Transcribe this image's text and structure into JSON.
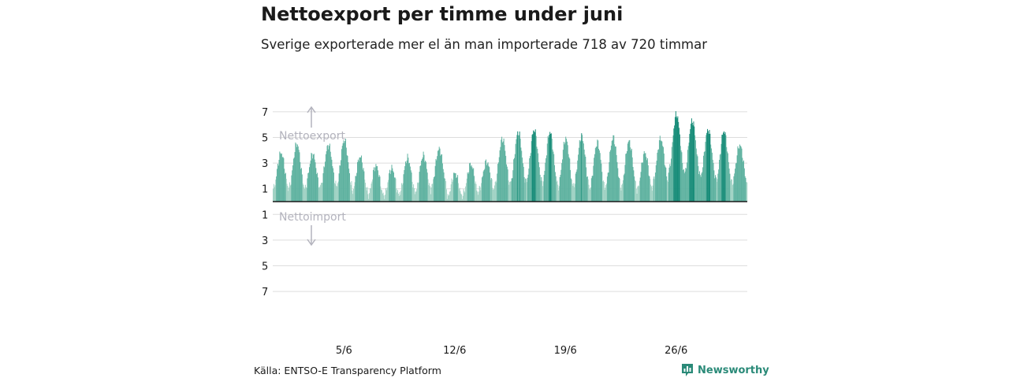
{
  "title": "Nettoexport per timme under juni",
  "subtitle": "Sverige exporterade mer el än man importerade 718 av 720 timmar",
  "source": "Källa: ENTSO-E Transparency Platform",
  "brand": {
    "name": "Newsworthy",
    "icon": "newsworthy-logo-icon",
    "color": "#2a8a78"
  },
  "colors": {
    "bar_light": "#9fd1c3",
    "bar_mid": "#5fb2a0",
    "bar_dark": "#178c78",
    "grid": "#dddddd",
    "baseline": "#1a1a1a",
    "annotation": "#b3b3bd"
  },
  "chart_data": {
    "type": "bar",
    "x_unit": "hour of June",
    "ylim": [
      -7,
      7
    ],
    "y_ticks": [
      {
        "value": 7,
        "label": "7"
      },
      {
        "value": 5,
        "label": "5"
      },
      {
        "value": 3,
        "label": "3"
      },
      {
        "value": 1,
        "label": "1"
      },
      {
        "value": -1,
        "label": "1"
      },
      {
        "value": -3,
        "label": "3"
      },
      {
        "value": -5,
        "label": "5"
      },
      {
        "value": -7,
        "label": "7"
      }
    ],
    "x_ticks": [
      {
        "label": "5/6",
        "day": 5
      },
      {
        "label": "12/6",
        "day": 12
      },
      {
        "label": "19/6",
        "day": 19
      },
      {
        "label": "26/6",
        "day": 26
      }
    ],
    "annotations": {
      "export": "Nettoexport",
      "import": "Nettoimport"
    },
    "daily_peaks": [
      3.8,
      4.5,
      3.7,
      4.4,
      4.8,
      3.5,
      2.8,
      2.6,
      3.4,
      3.6,
      4.1,
      2.2,
      2.9,
      3.1,
      4.9,
      5.4,
      5.6,
      5.4,
      4.9,
      5.1,
      4.6,
      5.0,
      4.7,
      3.8,
      4.9,
      6.8,
      6.3,
      5.6,
      5.5,
      4.4
    ],
    "daily_troughs": [
      1.0,
      1.1,
      1.0,
      1.3,
      1.2,
      0.8,
      0.5,
      0.4,
      0.7,
      0.8,
      1.2,
      0.3,
      0.6,
      0.9,
      1.3,
      1.5,
      1.6,
      1.4,
      1.1,
      1.3,
      1.0,
      1.2,
      1.1,
      0.9,
      1.5,
      2.4,
      2.2,
      1.9,
      1.6,
      1.4
    ]
  }
}
